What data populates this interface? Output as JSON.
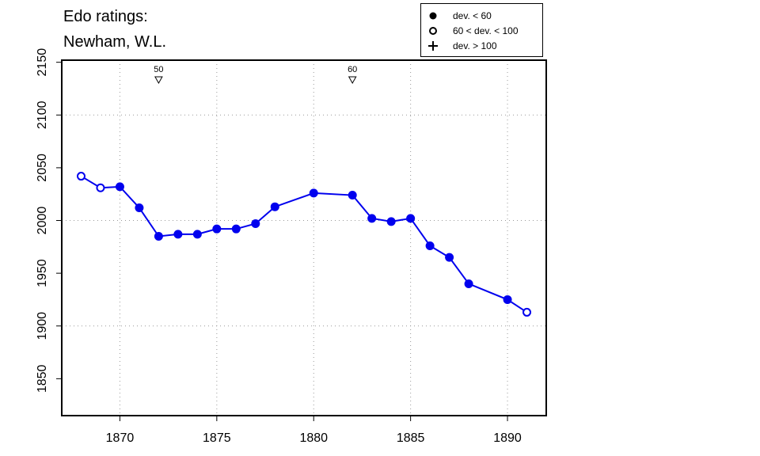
{
  "chart_data": {
    "type": "line",
    "title": "Edo ratings:",
    "subtitle": "Newham, W.L.",
    "xlim": [
      1867,
      1892
    ],
    "ylim": [
      1815,
      2152
    ],
    "x_ticks": [
      "1870",
      "1875",
      "1880",
      "1885",
      "1890"
    ],
    "y_ticks": [
      "1850",
      "1900",
      "1950",
      "2000",
      "2050",
      "2100",
      "2150"
    ],
    "gridlines_y": [
      1900,
      2000,
      2100
    ],
    "gridlines_x": [
      1870,
      1875,
      1880,
      1885,
      1890
    ],
    "color": "#0000ee",
    "series": [
      {
        "x": [
          1868,
          1869,
          1870,
          1871,
          1872,
          1873,
          1874,
          1875,
          1876,
          1877,
          1878,
          1880,
          1882,
          1883,
          1884,
          1885,
          1886,
          1887,
          1888,
          1890,
          1891
        ],
        "values": [
          2042,
          2031,
          2032,
          2012,
          1985,
          1987,
          1987,
          1992,
          1992,
          1997,
          2013,
          2026,
          2024,
          2002,
          1999,
          2002,
          1976,
          1965,
          1940,
          1925,
          1913
        ],
        "markers": [
          "open",
          "open",
          "filled",
          "filled",
          "filled",
          "filled",
          "filled",
          "filled",
          "filled",
          "filled",
          "filled",
          "filled",
          "filled",
          "filled",
          "filled",
          "filled",
          "filled",
          "filled",
          "filled",
          "filled",
          "open"
        ]
      }
    ],
    "annotations": [
      {
        "x": 1872,
        "label": "50",
        "marker": "open-down-triangle"
      },
      {
        "x": 1882,
        "label": "60",
        "marker": "open-down-triangle"
      }
    ],
    "legend": {
      "position": "top-right",
      "entries": [
        {
          "symbol": "filled-circle",
          "label": "dev. < 60"
        },
        {
          "symbol": "open-circle",
          "label": "60 < dev. < 100"
        },
        {
          "symbol": "plus",
          "label": "dev. > 100"
        }
      ]
    }
  }
}
